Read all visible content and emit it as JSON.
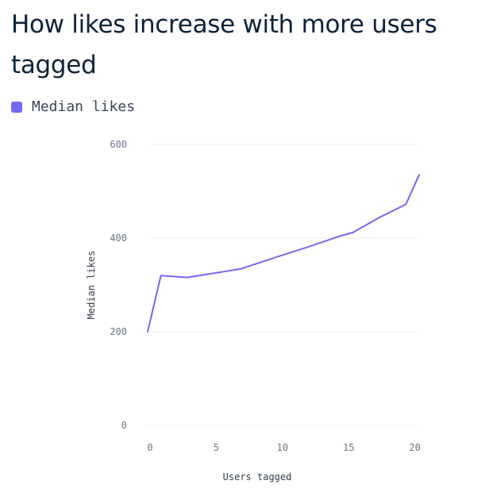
{
  "title": "How likes increase with more users tagged",
  "colors": {
    "line": "#7667f0",
    "grid": "#eef0f3",
    "title": "#0e2239"
  },
  "chart_data": {
    "type": "line",
    "title": "How likes increase with more users tagged",
    "xlabel": "Users tagged",
    "ylabel": "Median likes",
    "xlim": [
      0,
      20.5
    ],
    "ylim": [
      0,
      600
    ],
    "x_ticks": [
      0,
      5,
      10,
      15,
      20
    ],
    "y_ticks": [
      0,
      200,
      400,
      600
    ],
    "grid": true,
    "legend_position": "top-left",
    "series": [
      {
        "name": "Median likes",
        "color": "#7667f0",
        "x": [
          0,
          1,
          3,
          7,
          10,
          12,
          14.5,
          15.5,
          17.5,
          19.5,
          20.5
        ],
        "y": [
          200,
          320,
          316,
          334,
          362,
          380,
          404,
          412,
          444,
          472,
          535
        ]
      }
    ]
  }
}
